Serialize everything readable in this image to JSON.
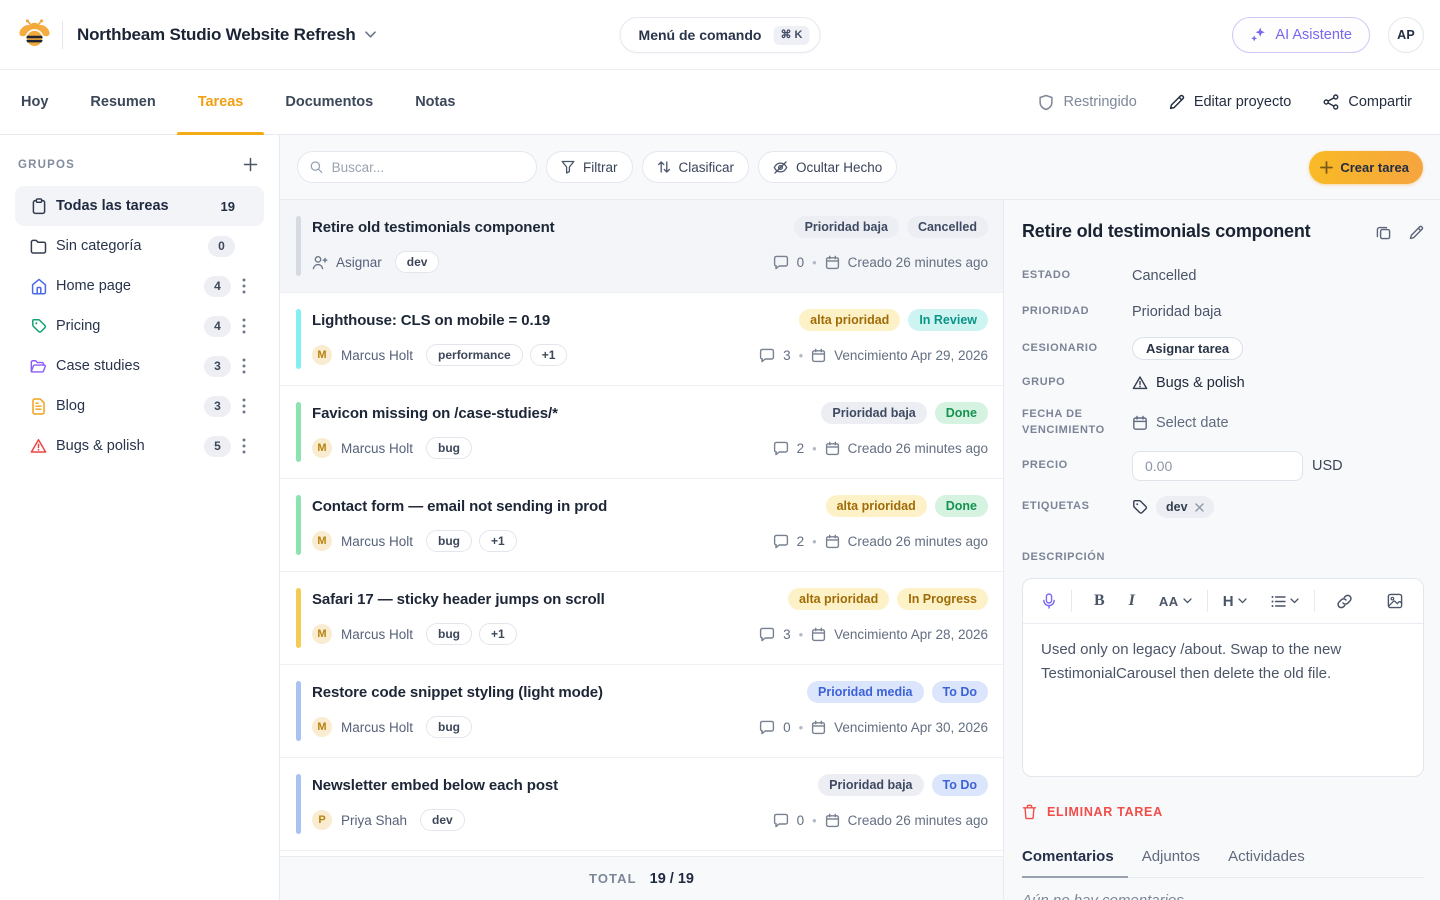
{
  "header": {
    "project_title": "Northbeam Studio Website Refresh",
    "command_menu_label": "Menú de comando",
    "command_menu_shortcut": "⌘ K",
    "ai_button_label": "AI Asistente",
    "avatar_initials": "AP"
  },
  "nav": {
    "tabs": [
      {
        "label": "Hoy",
        "active": false
      },
      {
        "label": "Resumen",
        "active": false
      },
      {
        "label": "Tareas",
        "active": true
      },
      {
        "label": "Documentos",
        "active": false
      },
      {
        "label": "Notas",
        "active": false
      }
    ],
    "actions": [
      {
        "icon": "shield-icon",
        "label": "Restringido",
        "muted": true
      },
      {
        "icon": "pencil-icon",
        "label": "Editar proyecto",
        "muted": false
      },
      {
        "icon": "share-icon",
        "label": "Compartir",
        "muted": false
      }
    ]
  },
  "sidebar": {
    "title": "GRUPOS",
    "items": [
      {
        "icon": "clipboard",
        "color": "#333d4f",
        "label": "Todas las tareas",
        "count": "19",
        "active": true,
        "menu": false,
        "plain_count": true
      },
      {
        "icon": "folder",
        "color": "#333d4f",
        "label": "Sin categoría",
        "count": "0",
        "active": false,
        "menu": false,
        "plain_count": false
      },
      {
        "icon": "home",
        "color": "#4b68ea",
        "label": "Home page",
        "count": "4",
        "active": false,
        "menu": true,
        "plain_count": false
      },
      {
        "icon": "tag",
        "color": "#10a372",
        "label": "Pricing",
        "count": "4",
        "active": false,
        "menu": true,
        "plain_count": false
      },
      {
        "icon": "folder-open",
        "color": "#8a5cf6",
        "label": "Case studies",
        "count": "3",
        "active": false,
        "menu": true,
        "plain_count": false
      },
      {
        "icon": "file-text",
        "color": "#f0a11c",
        "label": "Blog",
        "count": "3",
        "active": false,
        "menu": true,
        "plain_count": false
      },
      {
        "icon": "alert-triangle",
        "color": "#ee4444",
        "label": "Bugs & polish",
        "count": "5",
        "active": false,
        "menu": true,
        "plain_count": false
      }
    ]
  },
  "toolbar": {
    "search_placeholder": "Buscar...",
    "filter_label": "Filtrar",
    "sort_label": "Clasificar",
    "hide_done_label": "Ocultar Hecho",
    "create_label": "Crear tarea"
  },
  "tasks": [
    {
      "title": "Retire old testimonials component",
      "accent": "gray",
      "selected": true,
      "priority": {
        "label": "Prioridad baja",
        "type": "gray"
      },
      "status": {
        "label": "Cancelled",
        "type": "gray"
      },
      "assign_cta": "Asignar",
      "assignee": null,
      "tags": [
        "dev"
      ],
      "comments": "0",
      "date": "Creado 26 minutes ago"
    },
    {
      "title": "Lighthouse: CLS on mobile = 0.19",
      "accent": "cyan",
      "selected": false,
      "priority": {
        "label": "alta prioridad",
        "type": "amber"
      },
      "status": {
        "label": "In Review",
        "type": "cyan"
      },
      "assign_cta": null,
      "assignee": {
        "initial": "M",
        "name": "Marcus Holt"
      },
      "tags": [
        "performance",
        "+1"
      ],
      "comments": "3",
      "date": "Vencimiento Apr 29, 2026"
    },
    {
      "title": "Favicon missing on /case-studies/*",
      "accent": "green",
      "selected": false,
      "priority": {
        "label": "Prioridad baja",
        "type": "gray"
      },
      "status": {
        "label": "Done",
        "type": "green"
      },
      "assign_cta": null,
      "assignee": {
        "initial": "M",
        "name": "Marcus Holt"
      },
      "tags": [
        "bug"
      ],
      "comments": "2",
      "date": "Creado 26 minutes ago"
    },
    {
      "title": "Contact form — email not sending in prod",
      "accent": "green",
      "selected": false,
      "priority": {
        "label": "alta prioridad",
        "type": "amber"
      },
      "status": {
        "label": "Done",
        "type": "green"
      },
      "assign_cta": null,
      "assignee": {
        "initial": "M",
        "name": "Marcus Holt"
      },
      "tags": [
        "bug",
        "+1"
      ],
      "comments": "2",
      "date": "Creado 26 minutes ago"
    },
    {
      "title": "Safari 17 — sticky header jumps on scroll",
      "accent": "amber",
      "selected": false,
      "priority": {
        "label": "alta prioridad",
        "type": "amber"
      },
      "status": {
        "label": "In Progress",
        "type": "amber"
      },
      "assign_cta": null,
      "assignee": {
        "initial": "M",
        "name": "Marcus Holt"
      },
      "tags": [
        "bug",
        "+1"
      ],
      "comments": "3",
      "date": "Vencimiento Apr 28, 2026"
    },
    {
      "title": "Restore code snippet styling (light mode)",
      "accent": "blue",
      "selected": false,
      "priority": {
        "label": "Prioridad media",
        "type": "blue"
      },
      "status": {
        "label": "To Do",
        "type": "blue"
      },
      "assign_cta": null,
      "assignee": {
        "initial": "M",
        "name": "Marcus Holt"
      },
      "tags": [
        "bug"
      ],
      "comments": "0",
      "date": "Vencimiento Apr 30, 2026"
    },
    {
      "title": "Newsletter embed below each post",
      "accent": "blue",
      "selected": false,
      "priority": {
        "label": "Prioridad baja",
        "type": "gray"
      },
      "status": {
        "label": "To Do",
        "type": "blue"
      },
      "assign_cta": null,
      "assignee": {
        "initial": "P",
        "name": "Priya Shah"
      },
      "tags": [
        "dev"
      ],
      "comments": "0",
      "date": "Creado 26 minutes ago"
    }
  ],
  "footer": {
    "total_label": "TOTAL",
    "total_value": "19 / 19"
  },
  "detail": {
    "title": "Retire old testimonials component",
    "fields": {
      "estado": {
        "label": "ESTADO",
        "value": "Cancelled"
      },
      "prioridad": {
        "label": "PRIORIDAD",
        "value": "Prioridad baja"
      },
      "cesionario": {
        "label": "CESIONARIO",
        "value": "Asignar tarea"
      },
      "grupo": {
        "label": "GRUPO",
        "value": "Bugs & polish"
      },
      "fecha": {
        "label": "FECHA DE VENCIMIENTO",
        "value": "Select date"
      },
      "precio": {
        "label": "PRECIO",
        "value": "0.00",
        "currency": "USD"
      },
      "etiquetas": {
        "label": "ETIQUETAS",
        "tag": "dev"
      }
    },
    "description_label": "DESCRIPCIÓN",
    "description_text": "Used only on legacy /about. Swap to the new TestimonialCarousel then delete the old file.",
    "delete_label": "ELIMINAR TAREA",
    "tabs": [
      {
        "label": "Comentarios",
        "active": true
      },
      {
        "label": "Adjuntos",
        "active": false
      },
      {
        "label": "Actividades",
        "active": false
      }
    ],
    "empty_comments": "Aún no hay comentarios"
  }
}
